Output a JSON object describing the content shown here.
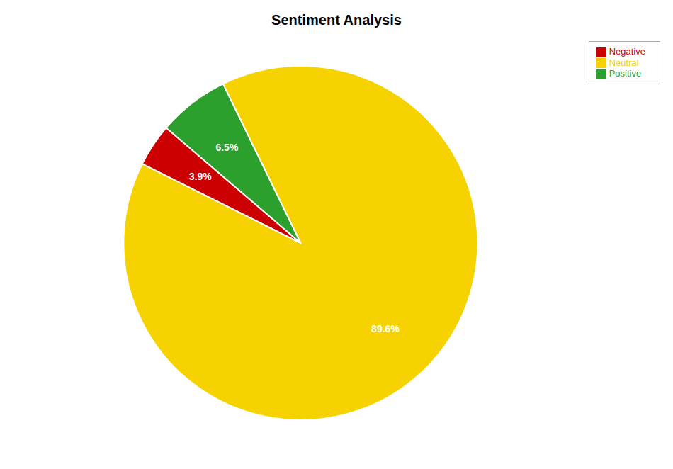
{
  "chart_data": {
    "type": "pie",
    "title": "Sentiment Analysis",
    "categories": [
      "Neutral",
      "Negative",
      "Positive"
    ],
    "values": [
      89.6,
      3.9,
      6.5
    ],
    "value_labels": [
      "89.6%",
      "3.9%",
      "6.5%"
    ],
    "colors": [
      "#f5d200",
      "#cc0000",
      "#2ca02c"
    ],
    "data_labels": true,
    "legend": "upper right"
  }
}
